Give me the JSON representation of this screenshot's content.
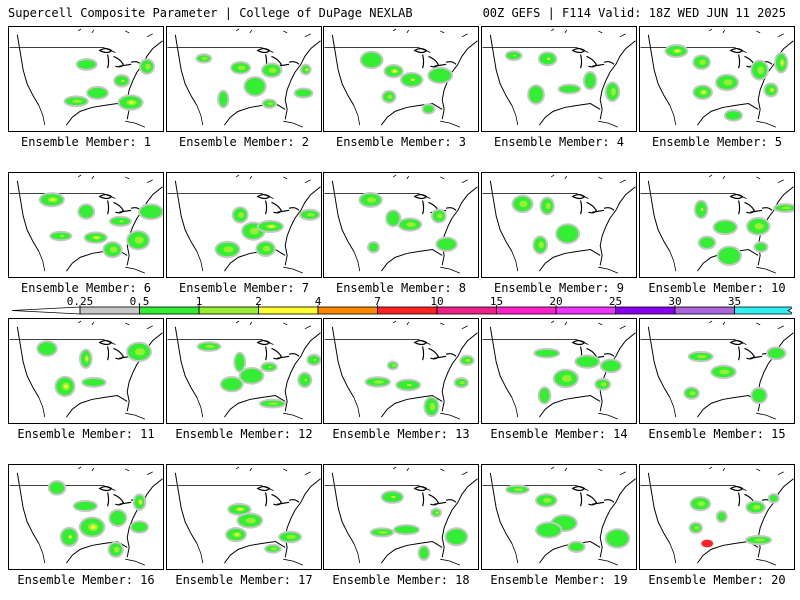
{
  "header": {
    "left": "Supercell Composite Parameter | College of DuPage NEXLAB",
    "right": "00Z GEFS | F114 Valid: 18Z WED JUN 11 2025"
  },
  "member_prefix": "Ensemble Member: ",
  "members": [
    {
      "id": 1,
      "label": "Ensemble Member: 1"
    },
    {
      "id": 2,
      "label": "Ensemble Member: 2"
    },
    {
      "id": 3,
      "label": "Ensemble Member: 3"
    },
    {
      "id": 4,
      "label": "Ensemble Member: 4"
    },
    {
      "id": 5,
      "label": "Ensemble Member: 5"
    },
    {
      "id": 6,
      "label": "Ensemble Member: 6"
    },
    {
      "id": 7,
      "label": "Ensemble Member: 7"
    },
    {
      "id": 8,
      "label": "Ensemble Member: 8"
    },
    {
      "id": 9,
      "label": "Ensemble Member: 9"
    },
    {
      "id": 10,
      "label": "Ensemble Member: 10"
    },
    {
      "id": 11,
      "label": "Ensemble Member: 11"
    },
    {
      "id": 12,
      "label": "Ensemble Member: 12"
    },
    {
      "id": 13,
      "label": "Ensemble Member: 13"
    },
    {
      "id": 14,
      "label": "Ensemble Member: 14"
    },
    {
      "id": 15,
      "label": "Ensemble Member: 15"
    },
    {
      "id": 16,
      "label": "Ensemble Member: 16"
    },
    {
      "id": 17,
      "label": "Ensemble Member: 17"
    },
    {
      "id": 18,
      "label": "Ensemble Member: 18"
    },
    {
      "id": 19,
      "label": "Ensemble Member: 19"
    },
    {
      "id": 20,
      "label": "Ensemble Member: 20"
    }
  ],
  "colorbar": {
    "ticks": [
      "0.25",
      "0.5",
      "1",
      "2",
      "4",
      "7",
      "10",
      "15",
      "20",
      "25",
      "30",
      "35"
    ],
    "colors": [
      "#c8c8c8",
      "#33ee33",
      "#99ee33",
      "#ffff33",
      "#ff8800",
      "#ff2222",
      "#ee2288",
      "#ff22cc",
      "#ee33ff",
      "#8800ee",
      "#aa66dd",
      "#33eeee"
    ]
  },
  "map_colors": {
    "gray": "#c8c8c8",
    "green": "#33ee33",
    "lime": "#99ee33",
    "yellow": "#ffff33",
    "red": "#ff2222",
    "outline": "#000000"
  }
}
